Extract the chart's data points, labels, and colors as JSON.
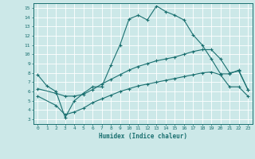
{
  "xlabel": "Humidex (Indice chaleur)",
  "bg_color": "#cce8e8",
  "line_color": "#1a7070",
  "grid_color": "#ffffff",
  "xlim": [
    -0.5,
    23.5
  ],
  "ylim": [
    2.5,
    15.5
  ],
  "xticks": [
    0,
    1,
    2,
    3,
    4,
    5,
    6,
    7,
    8,
    9,
    10,
    11,
    12,
    13,
    14,
    15,
    16,
    17,
    18,
    19,
    20,
    21,
    22,
    23
  ],
  "yticks": [
    3,
    4,
    5,
    6,
    7,
    8,
    9,
    10,
    11,
    12,
    13,
    14,
    15
  ],
  "line1_x": [
    0,
    1,
    2,
    3,
    4,
    5,
    6,
    7,
    8,
    9,
    10,
    11,
    12,
    13,
    14,
    15,
    16,
    17,
    18,
    19,
    20,
    21,
    22,
    23
  ],
  "line1_y": [
    7.8,
    6.6,
    6.0,
    3.2,
    5.0,
    5.8,
    6.5,
    6.5,
    8.8,
    11.0,
    13.8,
    14.2,
    13.7,
    15.2,
    14.6,
    14.2,
    13.7,
    12.1,
    11.0,
    9.5,
    7.9,
    7.9,
    8.3,
    6.2
  ],
  "line2_x": [
    0,
    2,
    3,
    4,
    5,
    6,
    7,
    8,
    9,
    10,
    11,
    12,
    13,
    14,
    15,
    16,
    17,
    18,
    19,
    20,
    21,
    22,
    23
  ],
  "line2_y": [
    6.3,
    5.8,
    5.5,
    5.5,
    5.7,
    6.2,
    6.8,
    7.3,
    7.8,
    8.3,
    8.7,
    9.0,
    9.3,
    9.5,
    9.7,
    10.0,
    10.3,
    10.5,
    10.5,
    9.5,
    8.0,
    8.2,
    6.2
  ],
  "line3_x": [
    0,
    2,
    3,
    4,
    5,
    6,
    7,
    8,
    9,
    10,
    11,
    12,
    13,
    14,
    15,
    16,
    17,
    18,
    19,
    20,
    21,
    22,
    23
  ],
  "line3_y": [
    5.5,
    4.5,
    3.5,
    3.8,
    4.2,
    4.8,
    5.2,
    5.6,
    6.0,
    6.3,
    6.6,
    6.8,
    7.0,
    7.2,
    7.4,
    7.6,
    7.8,
    8.0,
    8.1,
    7.8,
    6.5,
    6.5,
    5.5
  ]
}
